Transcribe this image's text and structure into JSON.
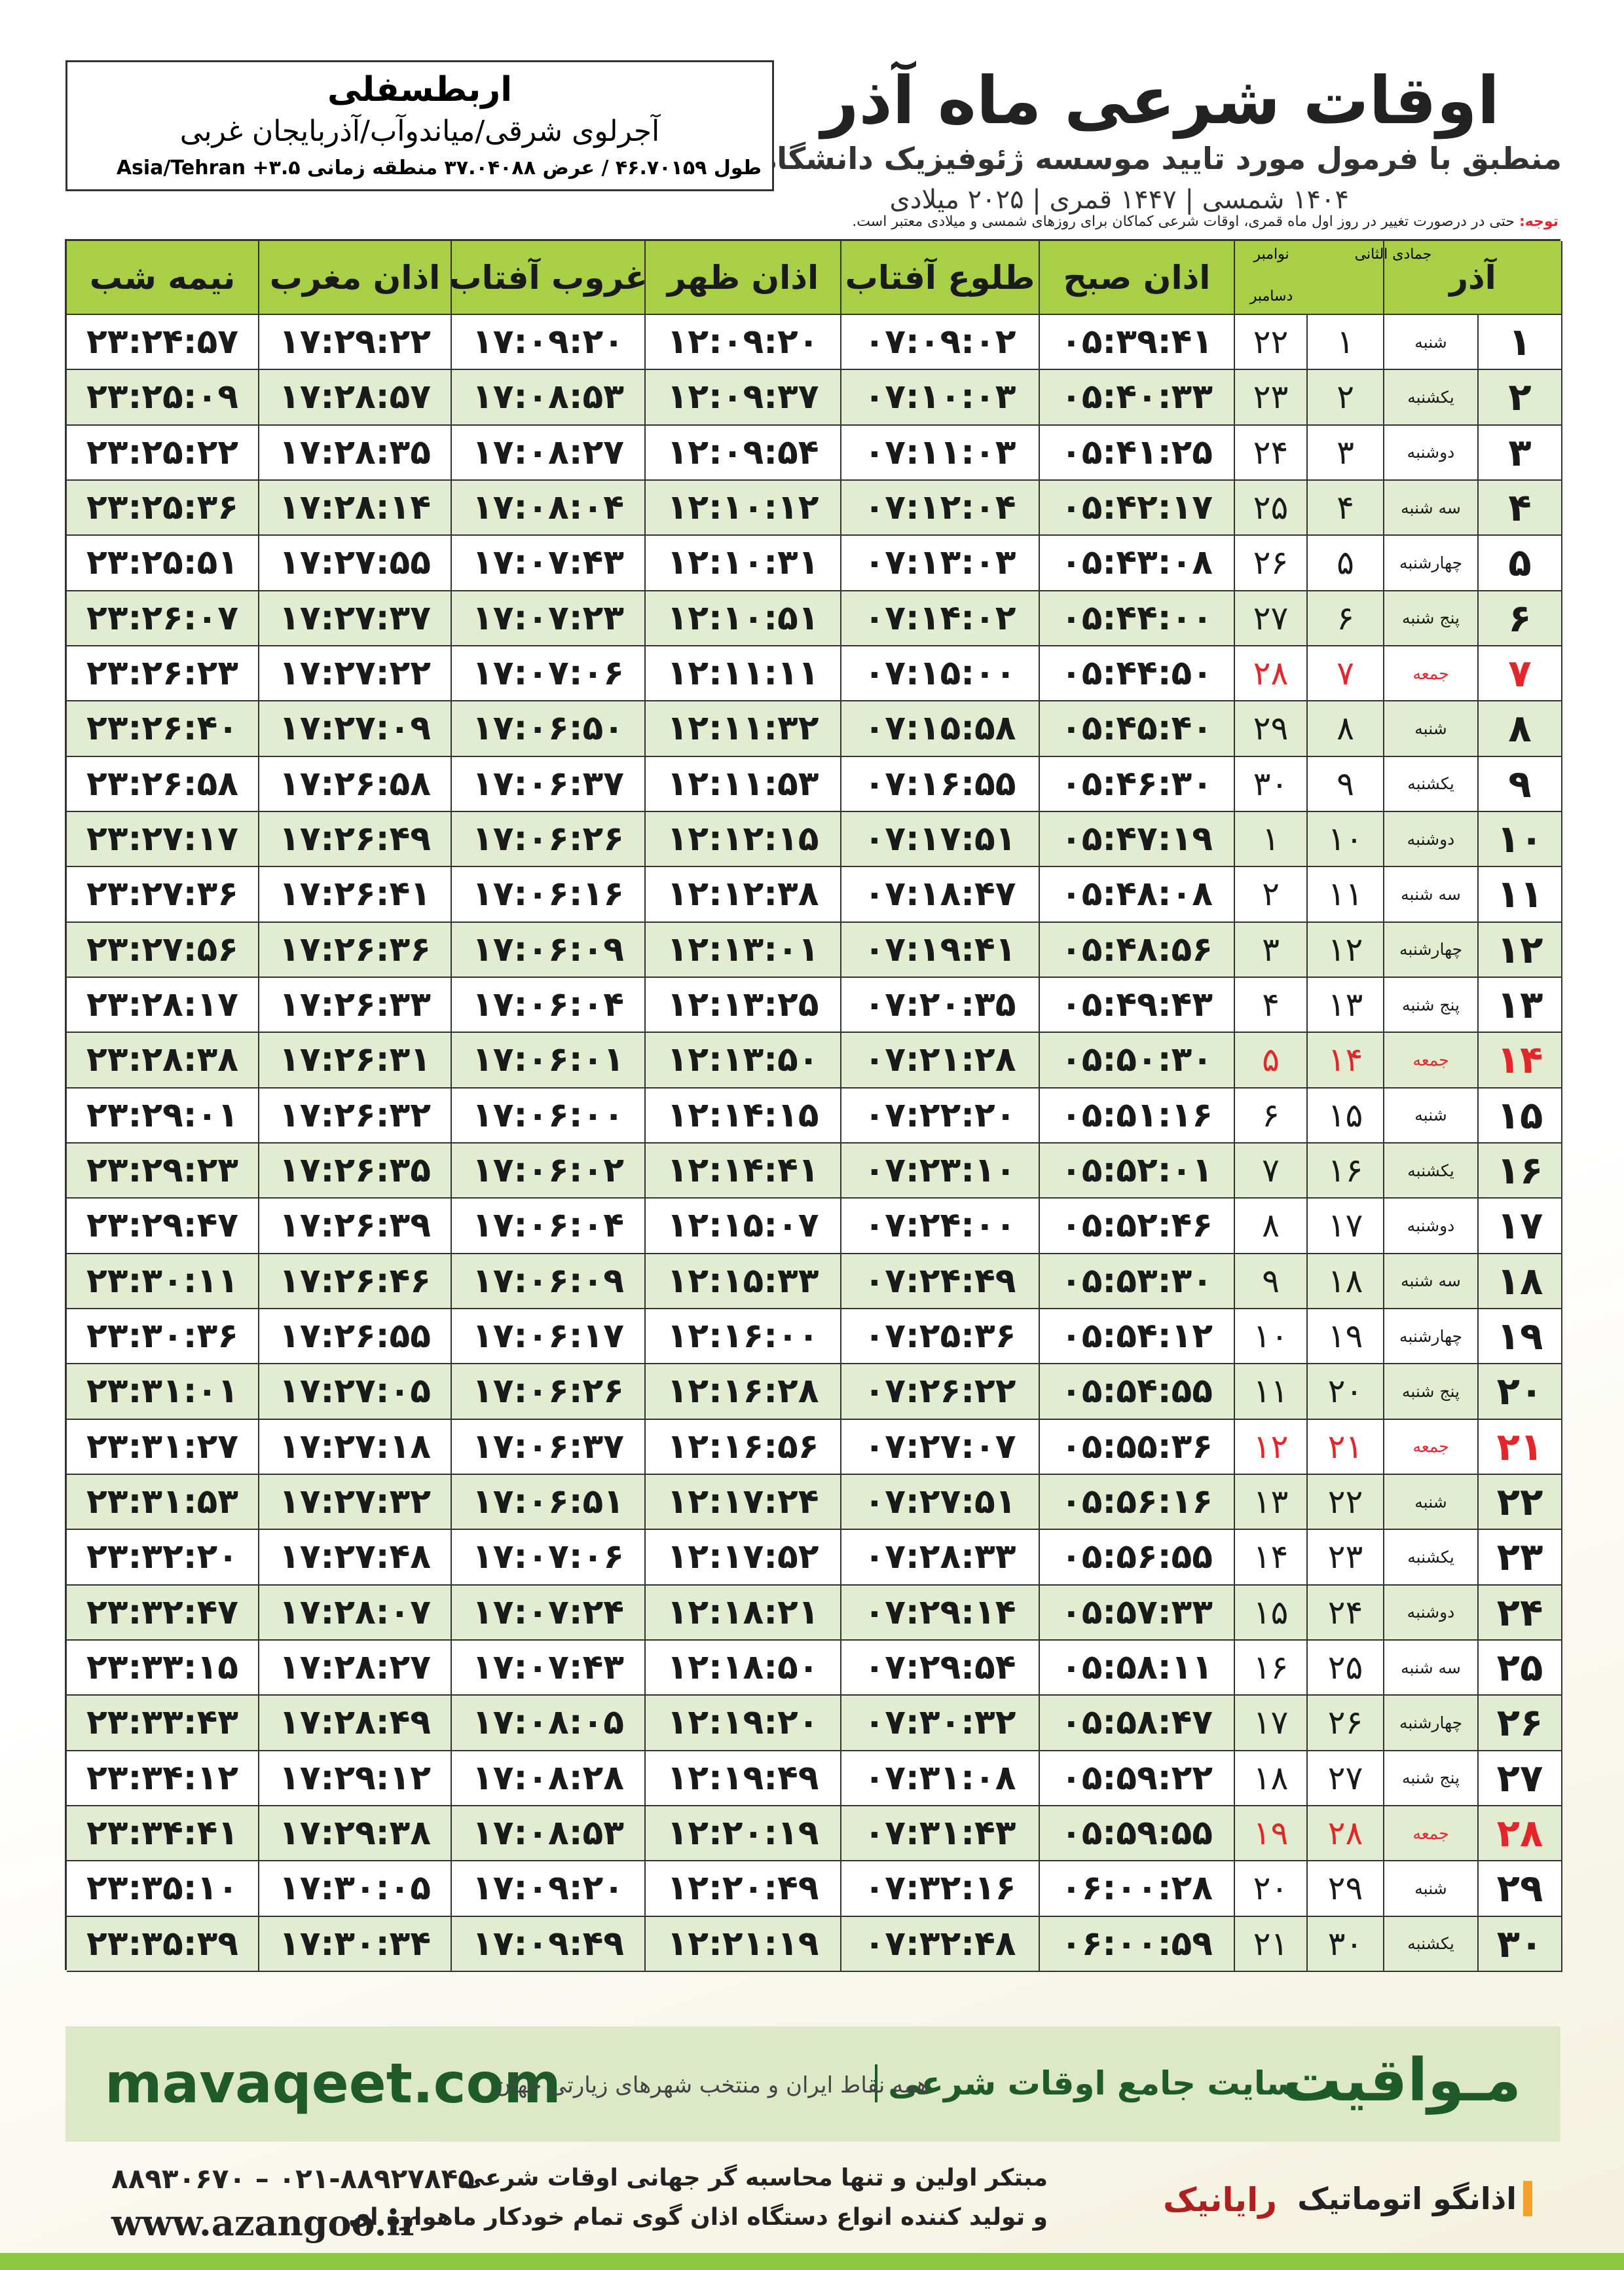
{
  "header": {
    "title": "اوقات شرعی ماه آذر",
    "subtitle": "منطبق با فرمول مورد تایید موسسه ژئوفیزیک دانشگاه تهران",
    "dates": "۱۴۰۴ شمسی | ۱۴۴۷ قمری | ۲۰۲۵ میلادی"
  },
  "location": {
    "name": "اربطسفلی",
    "address": "آجرلوی شرقی/میاندوآب/آذربایجان غربی",
    "coords": "طول ۴۶.۷۰۱۵۹ / عرض ۳۷.۰۴۰۸۸ منطقه زمانی ۳.۵+ Asia/Tehran"
  },
  "note": {
    "label": "توجه:",
    "text": "حتی در درصورت تغییر در روز اول ماه قمری، اوقات شرعی کماکان برای روزهای شمسی و میلادی معتبر است."
  },
  "table": {
    "headers": [
      "آذر",
      "جمادی الثانی",
      "نوامبر",
      "دسامبر",
      "اذان صبح",
      "طلوع آفتاب",
      "اذان ظهر",
      "غروب آفتاب",
      "اذان مغرب",
      "نیمه شب"
    ],
    "rows": [
      {
        "cells": [
          "۱",
          "شنبه",
          "۱",
          "۲۲",
          "۰۵:۳۹:۴۱",
          "۰۷:۰۹:۰۲",
          "۱۲:۰۹:۲۰",
          "۱۷:۰۹:۲۰",
          "۱۷:۲۹:۲۲",
          "۲۳:۲۴:۵۷"
        ]
      },
      {
        "cells": [
          "۲",
          "یکشنبه",
          "۲",
          "۲۳",
          "۰۵:۴۰:۳۳",
          "۰۷:۱۰:۰۳",
          "۱۲:۰۹:۳۷",
          "۱۷:۰۸:۵۳",
          "۱۷:۲۸:۵۷",
          "۲۳:۲۵:۰۹"
        ]
      },
      {
        "cells": [
          "۳",
          "دوشنبه",
          "۳",
          "۲۴",
          "۰۵:۴۱:۲۵",
          "۰۷:۱۱:۰۳",
          "۱۲:۰۹:۵۴",
          "۱۷:۰۸:۲۷",
          "۱۷:۲۸:۳۵",
          "۲۳:۲۵:۲۲"
        ]
      },
      {
        "cells": [
          "۴",
          "سه شنبه",
          "۴",
          "۲۵",
          "۰۵:۴۲:۱۷",
          "۰۷:۱۲:۰۴",
          "۱۲:۱۰:۱۲",
          "۱۷:۰۸:۰۴",
          "۱۷:۲۸:۱۴",
          "۲۳:۲۵:۳۶"
        ]
      },
      {
        "cells": [
          "۵",
          "چهارشنبه",
          "۵",
          "۲۶",
          "۰۵:۴۳:۰۸",
          "۰۷:۱۳:۰۳",
          "۱۲:۱۰:۳۱",
          "۱۷:۰۷:۴۳",
          "۱۷:۲۷:۵۵",
          "۲۳:۲۵:۵۱"
        ]
      },
      {
        "cells": [
          "۶",
          "پنج شنبه",
          "۶",
          "۲۷",
          "۰۵:۴۴:۰۰",
          "۰۷:۱۴:۰۲",
          "۱۲:۱۰:۵۱",
          "۱۷:۰۷:۲۳",
          "۱۷:۲۷:۳۷",
          "۲۳:۲۶:۰۷"
        ]
      },
      {
        "cells": [
          "۷",
          "جمعه",
          "۷",
          "۲۸",
          "۰۵:۴۴:۵۰",
          "۰۷:۱۵:۰۰",
          "۱۲:۱۱:۱۱",
          "۱۷:۰۷:۰۶",
          "۱۷:۲۷:۲۲",
          "۲۳:۲۶:۲۳"
        ],
        "color": "#e3262b"
      },
      {
        "cells": [
          "۸",
          "شنبه",
          "۸",
          "۲۹",
          "۰۵:۴۵:۴۰",
          "۰۷:۱۵:۵۸",
          "۱۲:۱۱:۳۲",
          "۱۷:۰۶:۵۰",
          "۱۷:۲۷:۰۹",
          "۲۳:۲۶:۴۰"
        ]
      },
      {
        "cells": [
          "۹",
          "یکشنبه",
          "۹",
          "۳۰",
          "۰۵:۴۶:۳۰",
          "۰۷:۱۶:۵۵",
          "۱۲:۱۱:۵۳",
          "۱۷:۰۶:۳۷",
          "۱۷:۲۶:۵۸",
          "۲۳:۲۶:۵۸"
        ]
      },
      {
        "cells": [
          "۱۰",
          "دوشنبه",
          "۱۰",
          "۱",
          "۰۵:۴۷:۱۹",
          "۰۷:۱۷:۵۱",
          "۱۲:۱۲:۱۵",
          "۱۷:۰۶:۲۶",
          "۱۷:۲۶:۴۹",
          "۲۳:۲۷:۱۷"
        ]
      },
      {
        "cells": [
          "۱۱",
          "سه شنبه",
          "۱۱",
          "۲",
          "۰۵:۴۸:۰۸",
          "۰۷:۱۸:۴۷",
          "۱۲:۱۲:۳۸",
          "۱۷:۰۶:۱۶",
          "۱۷:۲۶:۴۱",
          "۲۳:۲۷:۳۶"
        ]
      },
      {
        "cells": [
          "۱۲",
          "چهارشنبه",
          "۱۲",
          "۳",
          "۰۵:۴۸:۵۶",
          "۰۷:۱۹:۴۱",
          "۱۲:۱۳:۰۱",
          "۱۷:۰۶:۰۹",
          "۱۷:۲۶:۳۶",
          "۲۳:۲۷:۵۶"
        ]
      },
      {
        "cells": [
          "۱۳",
          "پنج شنبه",
          "۱۳",
          "۴",
          "۰۵:۴۹:۴۳",
          "۰۷:۲۰:۳۵",
          "۱۲:۱۳:۲۵",
          "۱۷:۰۶:۰۴",
          "۱۷:۲۶:۳۳",
          "۲۳:۲۸:۱۷"
        ]
      },
      {
        "cells": [
          "۱۴",
          "جمعه",
          "۱۴",
          "۵",
          "۰۵:۵۰:۳۰",
          "۰۷:۲۱:۲۸",
          "۱۲:۱۳:۵۰",
          "۱۷:۰۶:۰۱",
          "۱۷:۲۶:۳۱",
          "۲۳:۲۸:۳۸"
        ],
        "color": "#e3262b"
      },
      {
        "cells": [
          "۱۵",
          "شنبه",
          "۱۵",
          "۶",
          "۰۵:۵۱:۱۶",
          "۰۷:۲۲:۲۰",
          "۱۲:۱۴:۱۵",
          "۱۷:۰۶:۰۰",
          "۱۷:۲۶:۳۲",
          "۲۳:۲۹:۰۱"
        ]
      },
      {
        "cells": [
          "۱۶",
          "یکشنبه",
          "۱۶",
          "۷",
          "۰۵:۵۲:۰۱",
          "۰۷:۲۳:۱۰",
          "۱۲:۱۴:۴۱",
          "۱۷:۰۶:۰۲",
          "۱۷:۲۶:۳۵",
          "۲۳:۲۹:۲۳"
        ]
      },
      {
        "cells": [
          "۱۷",
          "دوشنبه",
          "۱۷",
          "۸",
          "۰۵:۵۲:۴۶",
          "۰۷:۲۴:۰۰",
          "۱۲:۱۵:۰۷",
          "۱۷:۰۶:۰۴",
          "۱۷:۲۶:۳۹",
          "۲۳:۲۹:۴۷"
        ]
      },
      {
        "cells": [
          "۱۸",
          "سه شنبه",
          "۱۸",
          "۹",
          "۰۵:۵۳:۳۰",
          "۰۷:۲۴:۴۹",
          "۱۲:۱۵:۳۳",
          "۱۷:۰۶:۰۹",
          "۱۷:۲۶:۴۶",
          "۲۳:۳۰:۱۱"
        ]
      },
      {
        "cells": [
          "۱۹",
          "چهارشنبه",
          "۱۹",
          "۱۰",
          "۰۵:۵۴:۱۲",
          "۰۷:۲۵:۳۶",
          "۱۲:۱۶:۰۰",
          "۱۷:۰۶:۱۷",
          "۱۷:۲۶:۵۵",
          "۲۳:۳۰:۳۶"
        ]
      },
      {
        "cells": [
          "۲۰",
          "پنج شنبه",
          "۲۰",
          "۱۱",
          "۰۵:۵۴:۵۵",
          "۰۷:۲۶:۲۲",
          "۱۲:۱۶:۲۸",
          "۱۷:۰۶:۲۶",
          "۱۷:۲۷:۰۵",
          "۲۳:۳۱:۰۱"
        ]
      },
      {
        "cells": [
          "۲۱",
          "جمعه",
          "۲۱",
          "۱۲",
          "۰۵:۵۵:۳۶",
          "۰۷:۲۷:۰۷",
          "۱۲:۱۶:۵۶",
          "۱۷:۰۶:۳۷",
          "۱۷:۲۷:۱۸",
          "۲۳:۳۱:۲۷"
        ],
        "color": "#e3262b"
      },
      {
        "cells": [
          "۲۲",
          "شنبه",
          "۲۲",
          "۱۳",
          "۰۵:۵۶:۱۶",
          "۰۷:۲۷:۵۱",
          "۱۲:۱۷:۲۴",
          "۱۷:۰۶:۵۱",
          "۱۷:۲۷:۳۲",
          "۲۳:۳۱:۵۳"
        ]
      },
      {
        "cells": [
          "۲۳",
          "یکشنبه",
          "۲۳",
          "۱۴",
          "۰۵:۵۶:۵۵",
          "۰۷:۲۸:۳۳",
          "۱۲:۱۷:۵۲",
          "۱۷:۰۷:۰۶",
          "۱۷:۲۷:۴۸",
          "۲۳:۳۲:۲۰"
        ]
      },
      {
        "cells": [
          "۲۴",
          "دوشنبه",
          "۲۴",
          "۱۵",
          "۰۵:۵۷:۳۳",
          "۰۷:۲۹:۱۴",
          "۱۲:۱۸:۲۱",
          "۱۷:۰۷:۲۴",
          "۱۷:۲۸:۰۷",
          "۲۳:۳۲:۴۷"
        ]
      },
      {
        "cells": [
          "۲۵",
          "سه شنبه",
          "۲۵",
          "۱۶",
          "۰۵:۵۸:۱۱",
          "۰۷:۲۹:۵۴",
          "۱۲:۱۸:۵۰",
          "۱۷:۰۷:۴۳",
          "۱۷:۲۸:۲۷",
          "۲۳:۳۳:۱۵"
        ]
      },
      {
        "cells": [
          "۲۶",
          "چهارشنبه",
          "۲۶",
          "۱۷",
          "۰۵:۵۸:۴۷",
          "۰۷:۳۰:۳۲",
          "۱۲:۱۹:۲۰",
          "۱۷:۰۸:۰۵",
          "۱۷:۲۸:۴۹",
          "۲۳:۳۳:۴۳"
        ]
      },
      {
        "cells": [
          "۲۷",
          "پنج شنبه",
          "۲۷",
          "۱۸",
          "۰۵:۵۹:۲۲",
          "۰۷:۳۱:۰۸",
          "۱۲:۱۹:۴۹",
          "۱۷:۰۸:۲۸",
          "۱۷:۲۹:۱۲",
          "۲۳:۳۴:۱۲"
        ]
      },
      {
        "cells": [
          "۲۸",
          "جمعه",
          "۲۸",
          "۱۹",
          "۰۵:۵۹:۵۵",
          "۰۷:۳۱:۴۳",
          "۱۲:۲۰:۱۹",
          "۱۷:۰۸:۵۳",
          "۱۷:۲۹:۳۸",
          "۲۳:۳۴:۴۱"
        ],
        "color": "#e3262b"
      },
      {
        "cells": [
          "۲۹",
          "شنبه",
          "۲۹",
          "۲۰",
          "۰۶:۰۰:۲۸",
          "۰۷:۳۲:۱۶",
          "۱۲:۲۰:۴۹",
          "۱۷:۰۹:۲۰",
          "۱۷:۳۰:۰۵",
          "۲۳:۳۵:۱۰"
        ]
      },
      {
        "cells": [
          "۳۰",
          "یکشنبه",
          "۳۰",
          "۲۱",
          "۰۶:۰۰:۵۹",
          "۰۷:۳۲:۴۸",
          "۱۲:۲۱:۱۹",
          "۱۷:۰۹:۴۹",
          "۱۷:۳۰:۳۴",
          "۲۳:۳۵:۳۹"
        ]
      }
    ]
  },
  "footer": {
    "site": "mavaqeet.com",
    "brand": "مـواقیت",
    "slogan": "سایت جامع اوقات شرعی",
    "tagline": "همه نقاط ایران و منتخب شهرهای زیارتی جهان",
    "phone": "۰۲۱-۸۸۹۲۷۸۴۵ – ۸۸۹۳۰۶۷۰",
    "web": "www.azangoo.ir",
    "line1": "مبتکر اولین و تنها محاسبه گر جهانی اوقات شرعی",
    "line2": "و تولید کننده انواع دستگاه اذان گوی تمام خودکار ماهواره ای",
    "logo1": "رایانیک",
    "logo2": "اذانگو اتوماتیک"
  }
}
